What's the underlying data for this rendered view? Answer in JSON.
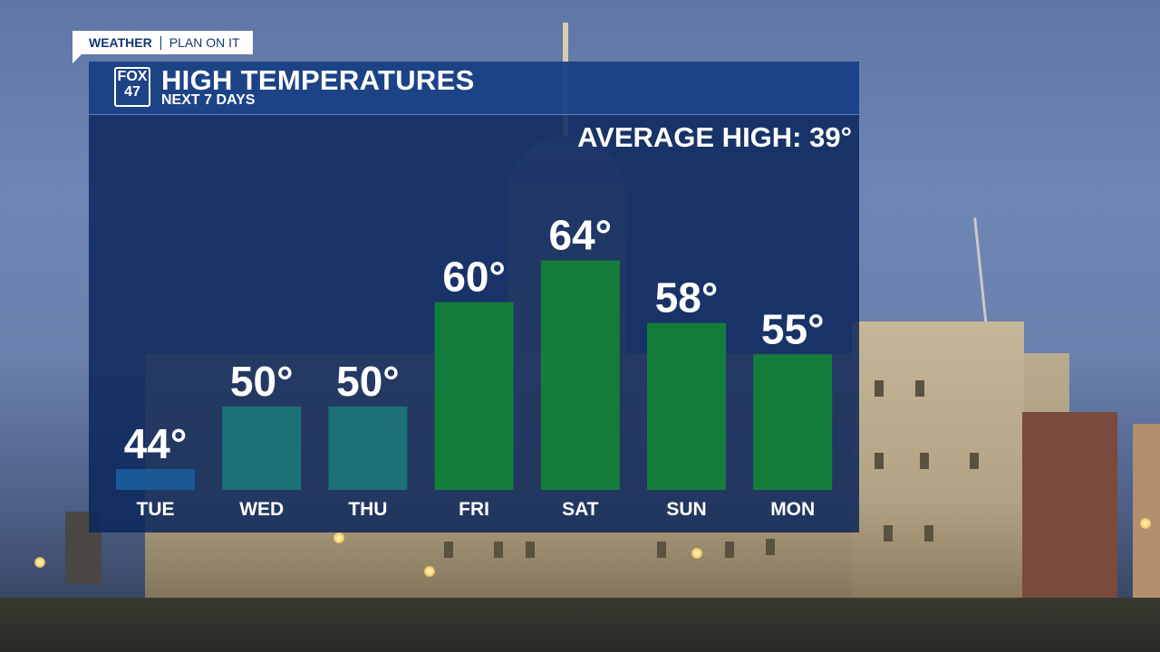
{
  "brand": {
    "name": "WEATHER",
    "tagline": "PLAN ON IT"
  },
  "logo": {
    "line1": "FOX",
    "line2": "47"
  },
  "header": {
    "title": "HIGH TEMPERATURES",
    "subtitle": "NEXT 7 DAYS"
  },
  "average_label": "AVERAGE HIGH: 39°",
  "colors": {
    "cool_bar": "#1a5fa0",
    "teal_bar": "#1b7a7a",
    "warm_bar": "#138a34",
    "panel": "#0a265c",
    "header": "#163e82"
  },
  "chart_data": {
    "type": "bar",
    "title": "HIGH TEMPERATURES",
    "subtitle": "NEXT 7 DAYS",
    "categories": [
      "TUE",
      "WED",
      "THU",
      "FRI",
      "SAT",
      "SUN",
      "MON"
    ],
    "values": [
      44,
      50,
      50,
      60,
      64,
      58,
      55
    ],
    "value_labels": [
      "44°",
      "50°",
      "50°",
      "60°",
      "64°",
      "58°",
      "55°"
    ],
    "unit": "°",
    "reference": {
      "label": "AVERAGE HIGH: 39°",
      "value": 39
    },
    "ylim": [
      42,
      71
    ],
    "bar_colors": [
      "#1a5fa0",
      "#1b7a7a",
      "#1b7a7a",
      "#138a34",
      "#138a34",
      "#138a34",
      "#138a34"
    ],
    "grid": false,
    "legend": "none"
  }
}
